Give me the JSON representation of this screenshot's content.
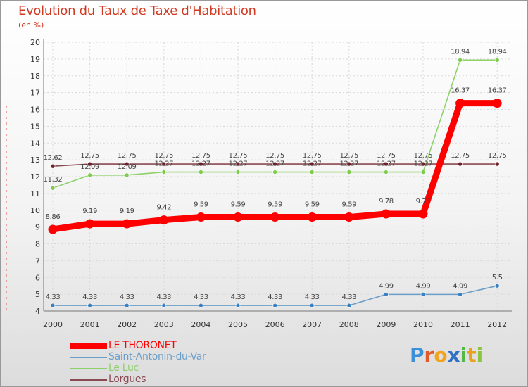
{
  "header": {
    "title": "Evolution du Taux de Taxe d'Habitation",
    "unit": "(en %)"
  },
  "chart_data": {
    "type": "line",
    "title": "Evolution du Taux de Taxe d'Habitation",
    "ylabel": "(en %)",
    "xlabel": "",
    "categories": [
      "2000",
      "2001",
      "2002",
      "2003",
      "2004",
      "2005",
      "2006",
      "2007",
      "2008",
      "2009",
      "2010",
      "2011",
      "2012"
    ],
    "ylim": [
      4,
      20
    ],
    "yticks": [
      "4",
      "5",
      "6",
      "7",
      "8",
      "9",
      "10",
      "11",
      "12",
      "13",
      "14",
      "15",
      "16",
      "17",
      "18",
      "19",
      "20"
    ],
    "grid": true,
    "series": [
      {
        "name": "LE THORONET",
        "color": "#ff0000",
        "markerColor": "#ff0000",
        "thick": true,
        "values": [
          8.86,
          9.19,
          9.19,
          9.42,
          9.59,
          9.59,
          9.59,
          9.59,
          9.59,
          9.78,
          9.78,
          16.37,
          16.37
        ],
        "labels": [
          "8.86",
          "9.19",
          "9.19",
          "9.42",
          "9.59",
          "9.59",
          "9.59",
          "9.59",
          "9.59",
          "9.78",
          "9.78",
          "16.37",
          "16.37"
        ]
      },
      {
        "name": "Saint-Antonin-du-Var",
        "color": "#6a9ec8",
        "markerColor": "#3a7fc0",
        "thick": false,
        "values": [
          4.33,
          4.33,
          4.33,
          4.33,
          4.33,
          4.33,
          4.33,
          4.33,
          4.33,
          4.99,
          4.99,
          4.99,
          5.5
        ],
        "labels": [
          "4.33",
          "4.33",
          "4.33",
          "4.33",
          "4.33",
          "4.33",
          "4.33",
          "4.33",
          "4.33",
          "4.99",
          "4.99",
          "4.99",
          "5.5"
        ]
      },
      {
        "name": "Le Luc",
        "color": "#8ed16a",
        "markerColor": "#7ccc4a",
        "thick": false,
        "values": [
          11.32,
          12.09,
          12.09,
          12.27,
          12.27,
          12.27,
          12.27,
          12.27,
          12.27,
          12.27,
          12.27,
          18.94,
          18.94
        ],
        "labels": [
          "11.32",
          "12.09",
          "12.09",
          "12.27",
          "12.27",
          "12.27",
          "12.27",
          "12.27",
          "12.27",
          "12.27",
          "12.27",
          "18.94",
          "18.94"
        ]
      },
      {
        "name": "Lorgues",
        "color": "#8a4a52",
        "markerColor": "#6e2028",
        "thick": false,
        "values": [
          12.62,
          12.75,
          12.75,
          12.75,
          12.75,
          12.75,
          12.75,
          12.75,
          12.75,
          12.75,
          12.75,
          12.75,
          12.75
        ],
        "labels": [
          "12.62",
          "12.75",
          "12.75",
          "12.75",
          "12.75",
          "12.75",
          "12.75",
          "12.75",
          "12.75",
          "12.75",
          "12.75",
          "12.75",
          "12.75"
        ]
      }
    ],
    "legend_position": "bottom-left"
  },
  "legend": {
    "items": [
      {
        "label": "LE THORONET",
        "color": "#ff0000"
      },
      {
        "label": "Saint-Antonin-du-Var",
        "color": "#6a9ec8"
      },
      {
        "label": "Le Luc",
        "color": "#8ed16a"
      },
      {
        "label": "Lorgues",
        "color": "#8a4a52"
      }
    ]
  },
  "brand": {
    "p": "P",
    "r": "r",
    "o": "o",
    "x": "x",
    "i1": "i",
    "t": "t",
    "i2": "i"
  }
}
